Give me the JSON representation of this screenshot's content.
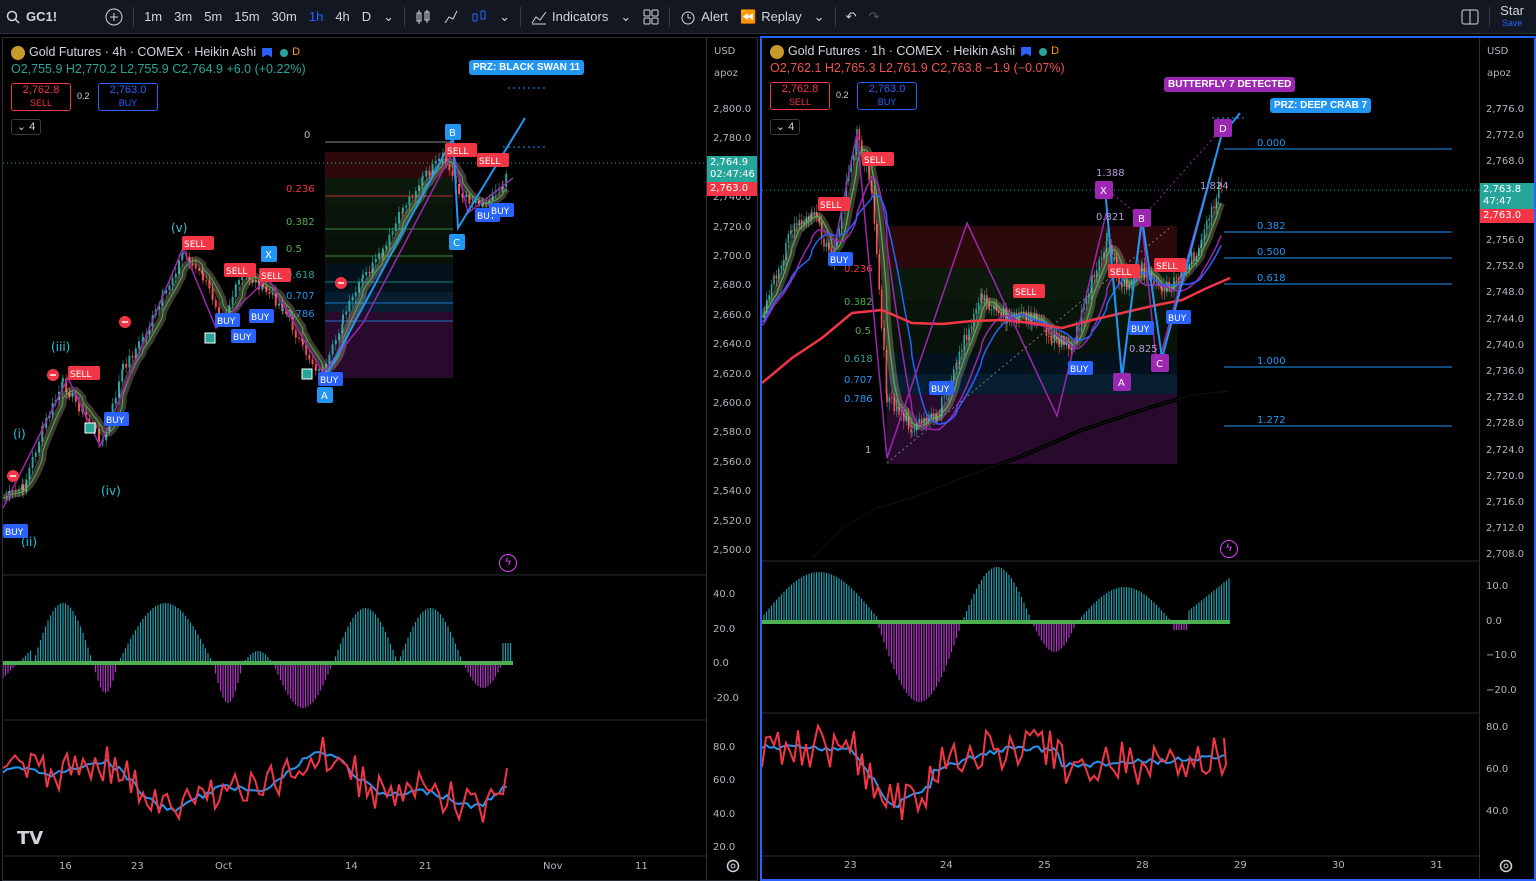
{
  "topbar": {
    "symbol": "GC1!",
    "timeframes": [
      "1m",
      "3m",
      "5m",
      "15m",
      "30m",
      "1h",
      "4h",
      "D"
    ],
    "active_tf": "1h",
    "indicators": "Indicators",
    "alert": "Alert",
    "replay": "Replay",
    "star": "Star",
    "save": "Save"
  },
  "left": {
    "title": "Gold Futures · 4h · COMEX · Heikin Ashi",
    "ohlc": "O2,755.9 H2,770.2 L2,755.9 C2,764.9 +6.0 (+0.22%)",
    "sell_price": "2,762.8",
    "sell_label": "SELL",
    "spread": "0.2",
    "buy_price": "2,763.0",
    "buy_label": "BUY",
    "indicator_count": "4",
    "currency": "USD",
    "scale": "apoz",
    "prices": [
      "2,800.0",
      "2,780.0",
      "2,760.0",
      "2,740.0",
      "2,720.0",
      "2,700.0",
      "2,680.0",
      "2,660.0",
      "2,640.0",
      "2,620.0",
      "2,600.0",
      "2,580.0",
      "2,560.0",
      "2,540.0",
      "2,520.0",
      "2,500.0"
    ],
    "last_price": "2,764.9",
    "countdown": "02:47:46",
    "bid_price": "2,763.0",
    "osc1": [
      "40.0",
      "20.0",
      "0.0",
      "-20.0"
    ],
    "osc2": [
      "80.0",
      "60.0",
      "40.0",
      "20.0"
    ],
    "dates": [
      "16",
      "23",
      "Oct",
      "14",
      "21",
      "Nov",
      "11"
    ],
    "prz": "PRZ: BLACK SWAN 11",
    "fib": [
      "0",
      "0.236",
      "0.382",
      "0.5",
      "0.618",
      "0.707",
      "0.786"
    ],
    "waves": [
      "(i)",
      "(ii)",
      "(iii)",
      "(iv)",
      "(v)"
    ],
    "points": [
      "X",
      "A",
      "B",
      "C"
    ],
    "logo": "TV"
  },
  "right": {
    "title": "Gold Futures · 1h · COMEX · Heikin Ashi",
    "ohlc": "O2,762.1 H2,765.3 L2,761.9 C2,763.8 −1.9 (−0.07%)",
    "sell_price": "2,762.8",
    "sell_label": "SELL",
    "spread": "0.2",
    "buy_price": "2,763.0",
    "buy_label": "BUY",
    "indicator_count": "4",
    "currency": "USD",
    "scale": "apoz",
    "prices": [
      "2,776.0",
      "2,772.0",
      "2,768.0",
      "2,764.0",
      "2,760.0",
      "2,756.0",
      "2,752.0",
      "2,748.0",
      "2,744.0",
      "2,740.0",
      "2,736.0",
      "2,732.0",
      "2,728.0",
      "2,724.0",
      "2,720.0",
      "2,716.0",
      "2,712.0",
      "2,708.0"
    ],
    "last_price": "2,763.8",
    "countdown": "47:47",
    "bid_price": "2,763.0",
    "osc1": [
      "10.0",
      "0.0",
      "−10.0",
      "−20.0"
    ],
    "osc2": [
      "80.0",
      "60.0",
      "40.0"
    ],
    "dates": [
      "23",
      "24",
      "25",
      "28",
      "29",
      "30",
      "31"
    ],
    "butterfly": "BUTTERFLY 7 DETECTED",
    "prz": "PRZ: DEEP CRAB 7",
    "fib_right": [
      "0.000",
      "0.382",
      "0.500",
      "0.618",
      "1.000",
      "1.272"
    ],
    "fib_left": [
      "0.236",
      "0.382",
      "0.5",
      "0.618",
      "0.707",
      "0.786",
      "1"
    ],
    "ratios": [
      "1.388",
      "1.824",
      "0.821",
      "0.825"
    ],
    "points": [
      "X",
      "A",
      "B",
      "C",
      "D"
    ]
  },
  "colors": {
    "up": "#26a69a",
    "down": "#ef5350",
    "accent": "#2962ff",
    "purple": "#9c27b0",
    "cyan": "#00bcd4"
  }
}
